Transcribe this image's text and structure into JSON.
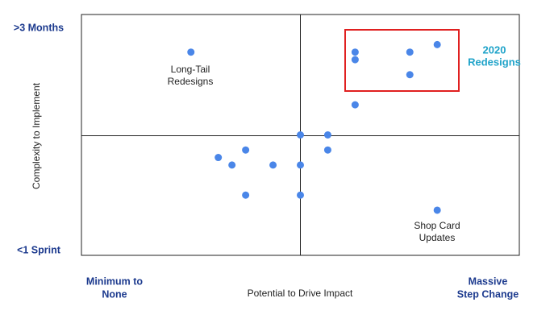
{
  "chart_data": {
    "type": "scatter",
    "y_label": "Complexity to Implement",
    "x_label": "Potential to Drive Impact",
    "y_top_label": ">3 Months",
    "y_bottom_label": "<1 Sprint",
    "x_left_label": [
      "Minimum to",
      "None"
    ],
    "x_right_label": [
      "Massive",
      "Step Change"
    ],
    "annotations": [
      {
        "lines": [
          "Long-Tail",
          "Redesigns"
        ]
      },
      {
        "lines": [
          "2020",
          "Redesigns"
        ]
      },
      {
        "lines": [
          "Shop Card",
          "Updates"
        ]
      }
    ],
    "xlim": [
      0,
      16
    ],
    "ylim": [
      0,
      16
    ],
    "color": "#4a86e8",
    "x": [
      4,
      10,
      10,
      12,
      13,
      12,
      10,
      8,
      9,
      9,
      6,
      5,
      5.5,
      7,
      8,
      6,
      8,
      13
    ],
    "y": [
      13.5,
      13.5,
      13,
      13.5,
      14,
      12,
      10,
      8,
      8,
      7,
      7,
      6.5,
      6,
      6,
      6,
      4,
      4,
      3
    ]
  }
}
